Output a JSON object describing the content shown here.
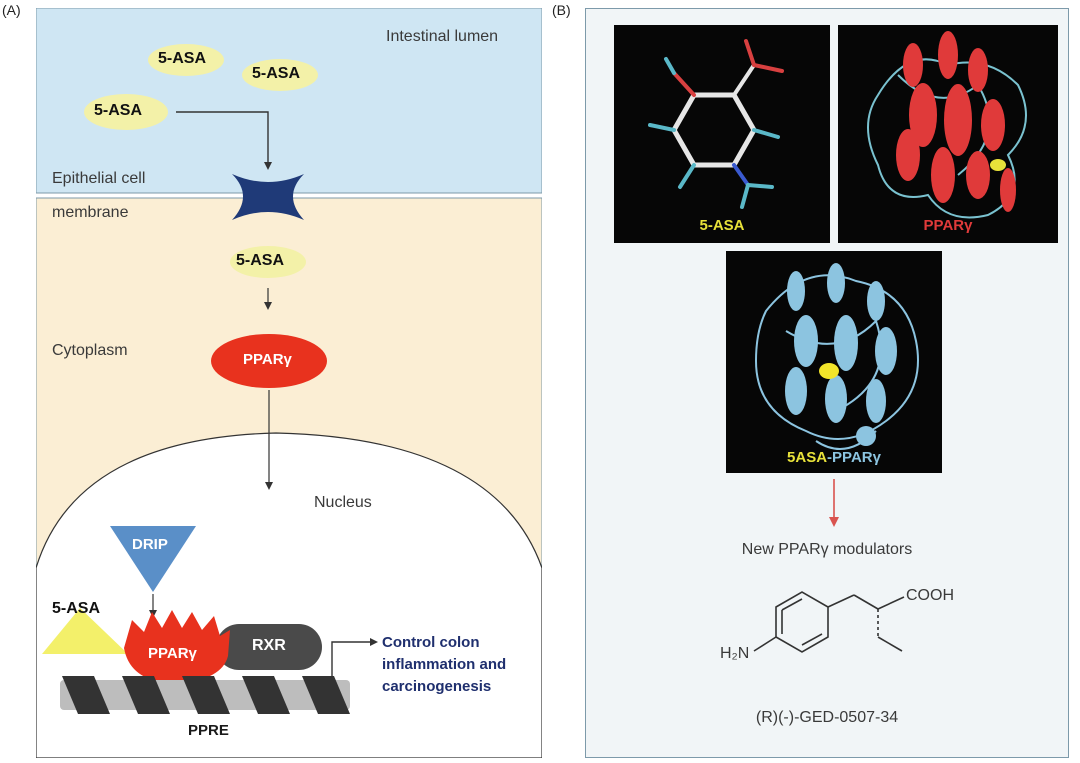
{
  "panel_a": {
    "label": "(A)",
    "lumen_label": "Intestinal lumen",
    "drug_labels": [
      "5-ASA",
      "5-ASA",
      "5-ASA"
    ],
    "membrane_label_line1": "Epithelial cell",
    "membrane_label_line2": "membrane",
    "cytoplasm_drug": "5-ASA",
    "cytoplasm_label": "Cytoplasm",
    "receptor_label": "PPARγ",
    "nucleus_label": "Nucleus",
    "drip_label": "DRIP",
    "nuclear_drug": "5-ASA",
    "nuclear_receptor": "PPARγ",
    "rxr_label": "RXR",
    "outcome_line1": "Control colon",
    "outcome_line2": "inflammation and",
    "outcome_line3": "carcinogenesis",
    "ppre_label": "PPRE",
    "colors": {
      "lumen": "#cfe6f3",
      "cytoplasm": "#fbeed4",
      "receptor": "#e8321e",
      "drip": "#5a8fc8",
      "transporter": "#1f3a78",
      "drug_glow": "#f3f1a8"
    }
  },
  "panel_b": {
    "label": "(B)",
    "molecule_caption": "5-ASA",
    "protein_caption": "PPARγ",
    "complex_caption_part1": "5ASA",
    "complex_caption_part2": "-PPARγ",
    "modulators_label": "New PPARγ modulators",
    "cooh_label": "COOH",
    "amine_label": "H₂N",
    "compound_name": "(R)(-)-GED-0507-34",
    "colors": {
      "border": "#7d9aaa",
      "arrow": "#d9534f",
      "helix_red": "#e03a3a",
      "helix_blue": "#8cc4e0"
    }
  }
}
